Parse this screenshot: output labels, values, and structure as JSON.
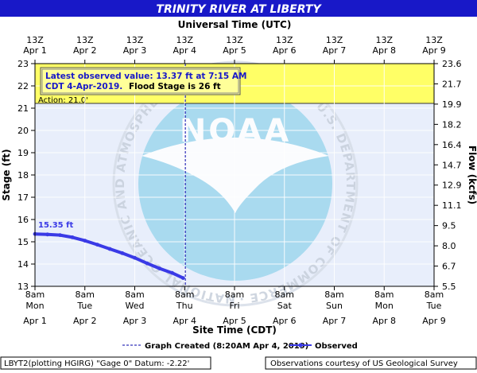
{
  "title": "TRINITY RIVER AT LIBERTY",
  "top_axis_title": "Universal Time (UTC)",
  "bottom_axis_title": "Site Time (CDT)",
  "left_axis_title": "Stage (ft)",
  "right_axis_title": "Flow (kcfs)",
  "colors": {
    "header_bg": "#1818c8",
    "observed": "#3a3ae6",
    "flood_band": "#ffff66",
    "background": "#e8eefb",
    "grid": "#ffffff",
    "created_line": "#0000aa",
    "logo": "#9fd7ee"
  },
  "annotation": {
    "line1": "Latest observed value: 13.37 ft at 7:15 AM",
    "line2_a": "CDT 4-Apr-2019.",
    "line2_b": "Flood Stage is 26 ft"
  },
  "action_label": "Action:  21.0'",
  "first_value_label": "15.35 ft",
  "watermark": {
    "logo_text": "NOAA",
    "ring_text": "NATIONAL OCEANIC AND ATMOSPHERIC ADMINISTRATION · U.S. DEPARTMENT OF COMMERCE ·"
  },
  "legend": {
    "created": "Graph Created (8:20AM Apr 4, 2019)",
    "observed": "Observed"
  },
  "footer": {
    "left": "LBYT2(plotting HGIRG) \"Gage 0\" Datum: -2.22'",
    "right": "Observations courtesy of US Geological Survey"
  },
  "chart_data": {
    "type": "line",
    "title": "TRINITY RIVER AT LIBERTY",
    "xlabel": "Site Time (CDT)",
    "ylabel": "Stage (ft)",
    "y2label": "Flow (kcfs)",
    "ylim": [
      13,
      23
    ],
    "y_ticks": [
      13,
      14,
      15,
      16,
      17,
      18,
      19,
      20,
      21,
      22,
      23
    ],
    "y2_ticks": [
      "5.5",
      "6.7",
      "8.0",
      "9.5",
      "11.1",
      "12.9",
      "14.7",
      "16.4",
      "18.2",
      "19.9",
      "21.7",
      "23.6"
    ],
    "x_ticks_bottom": [
      {
        "time": "8am",
        "day": "Mon",
        "date": "Apr 1"
      },
      {
        "time": "8am",
        "day": "Tue",
        "date": "Apr 2"
      },
      {
        "time": "8am",
        "day": "Wed",
        "date": "Apr 3"
      },
      {
        "time": "8am",
        "day": "Thu",
        "date": "Apr 4"
      },
      {
        "time": "8am",
        "day": "Fri",
        "date": "Apr 5"
      },
      {
        "time": "8am",
        "day": "Sat",
        "date": "Apr 6"
      },
      {
        "time": "8am",
        "day": "Sun",
        "date": "Apr 7"
      },
      {
        "time": "8am",
        "day": "Mon",
        "date": "Apr 8"
      },
      {
        "time": "8am",
        "day": "Tue",
        "date": "Apr 9"
      }
    ],
    "x_ticks_top": [
      {
        "time": "13Z",
        "date": "Apr 1"
      },
      {
        "time": "13Z",
        "date": "Apr 2"
      },
      {
        "time": "13Z",
        "date": "Apr 3"
      },
      {
        "time": "13Z",
        "date": "Apr 4"
      },
      {
        "time": "13Z",
        "date": "Apr 5"
      },
      {
        "time": "13Z",
        "date": "Apr 6"
      },
      {
        "time": "13Z",
        "date": "Apr 7"
      },
      {
        "time": "13Z",
        "date": "Apr 8"
      },
      {
        "time": "13Z",
        "date": "Apr 9"
      }
    ],
    "action_stage": 21.0,
    "flood_stage": 26,
    "graph_created": "2019-04-04 08:20",
    "series": [
      {
        "name": "Observed",
        "points": [
          [
            "2019-04-01 08:00",
            15.35
          ],
          [
            "2019-04-01 14:00",
            15.33
          ],
          [
            "2019-04-01 20:00",
            15.3
          ],
          [
            "2019-04-02 02:00",
            15.2
          ],
          [
            "2019-04-02 08:00",
            15.05
          ],
          [
            "2019-04-02 14:00",
            14.87
          ],
          [
            "2019-04-02 20:00",
            14.68
          ],
          [
            "2019-04-03 02:00",
            14.49
          ],
          [
            "2019-04-03 08:00",
            14.28
          ],
          [
            "2019-04-03 14:00",
            14.03
          ],
          [
            "2019-04-03 20:00",
            13.8
          ],
          [
            "2019-04-04 02:00",
            13.6
          ],
          [
            "2019-04-04 07:15",
            13.37
          ]
        ]
      }
    ]
  }
}
